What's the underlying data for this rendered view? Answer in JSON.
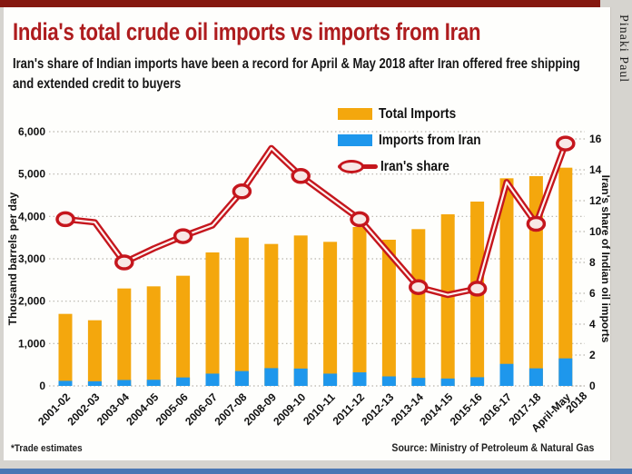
{
  "page": {
    "credit": "Pinaki Paul",
    "footnote": "*Trade estimates",
    "source": "Source: Ministry of Petroleum & Natural Gas"
  },
  "header": {
    "title": "India's total crude oil imports vs imports from Iran",
    "subtitle_lines": {
      "0": "Iran's share of Indian imports have been a record for April & May 2018 after Iran offered free shipping",
      "1": "and extended credit to buyers"
    }
  },
  "legend": {
    "items": [
      {
        "label": "Total Imports",
        "marker": "bar",
        "color": "#f4a70d"
      },
      {
        "label": "Imports from Iran",
        "marker": "bar",
        "color": "#1e97ec"
      },
      {
        "label": "Iran's share",
        "marker": "line-oval",
        "color": "#c5161d"
      }
    ]
  },
  "colors": {
    "title_red": "#ae1c1e",
    "total_bar_orange": "#f4a70d",
    "iran_bar_blue": "#1e97ec",
    "share_line_red": "#c5161d",
    "marker_fill_pink": "#f8e8e6",
    "top_strip_maroon": "#851810",
    "bottom_strip_blue": "#4a77b4",
    "gridline_gray": "#b8b4ac"
  },
  "chart_data": {
    "type": "bar",
    "subtype": "grouped-overlay bars with secondary-axis line",
    "categories": [
      "2001-02",
      "2002-03",
      "2003-04",
      "2004-05",
      "2005-06",
      "2006-07",
      "2007-08",
      "2008-09",
      "2009-10",
      "2010-11",
      "2011-12",
      "2012-13",
      "2013-14",
      "2014-15",
      "2015-16",
      "2016-17",
      "2017-18",
      "April-May\n2018"
    ],
    "series": [
      {
        "name": "Total Imports",
        "type": "bar",
        "axis": "left",
        "color": "#f4a70d",
        "values": [
          1700,
          1550,
          2300,
          2350,
          2600,
          3150,
          3500,
          3350,
          3550,
          3400,
          3750,
          3450,
          3700,
          4050,
          4350,
          4900,
          4950,
          5150
        ]
      },
      {
        "name": "Imports from Iran",
        "type": "bar",
        "axis": "left",
        "color": "#1e97ec",
        "values": [
          120,
          110,
          140,
          145,
          200,
          290,
          350,
          420,
          410,
          290,
          320,
          225,
          190,
          175,
          205,
          520,
          415,
          650
        ]
      },
      {
        "name": "Iran's share",
        "type": "line",
        "axis": "right",
        "color": "#c5161d",
        "values": [
          10.8,
          10.6,
          8.0,
          8.9,
          9.7,
          10.4,
          12.6,
          15.4,
          13.6,
          12.2,
          10.8,
          8.6,
          6.4,
          5.9,
          6.3,
          13.2,
          10.5,
          15.7
        ],
        "marker_indices": [
          0,
          2,
          4,
          6,
          8,
          10,
          12,
          14,
          16,
          17
        ]
      }
    ],
    "left_axis": {
      "label": "Thousand barrels per day",
      "min": 0,
      "max": 6000,
      "tick_labels": [
        "0",
        "1,000",
        "2,000",
        "3,000",
        "4,000",
        "5,000",
        "6,000"
      ]
    },
    "right_axis": {
      "label": "Iran's share of Indian oil imports",
      "min": 0,
      "max": 16,
      "tick_labels": [
        "0",
        "2",
        "4",
        "6",
        "8",
        "10",
        "12",
        "14",
        "16"
      ]
    },
    "grid": "dotted horizontal"
  }
}
